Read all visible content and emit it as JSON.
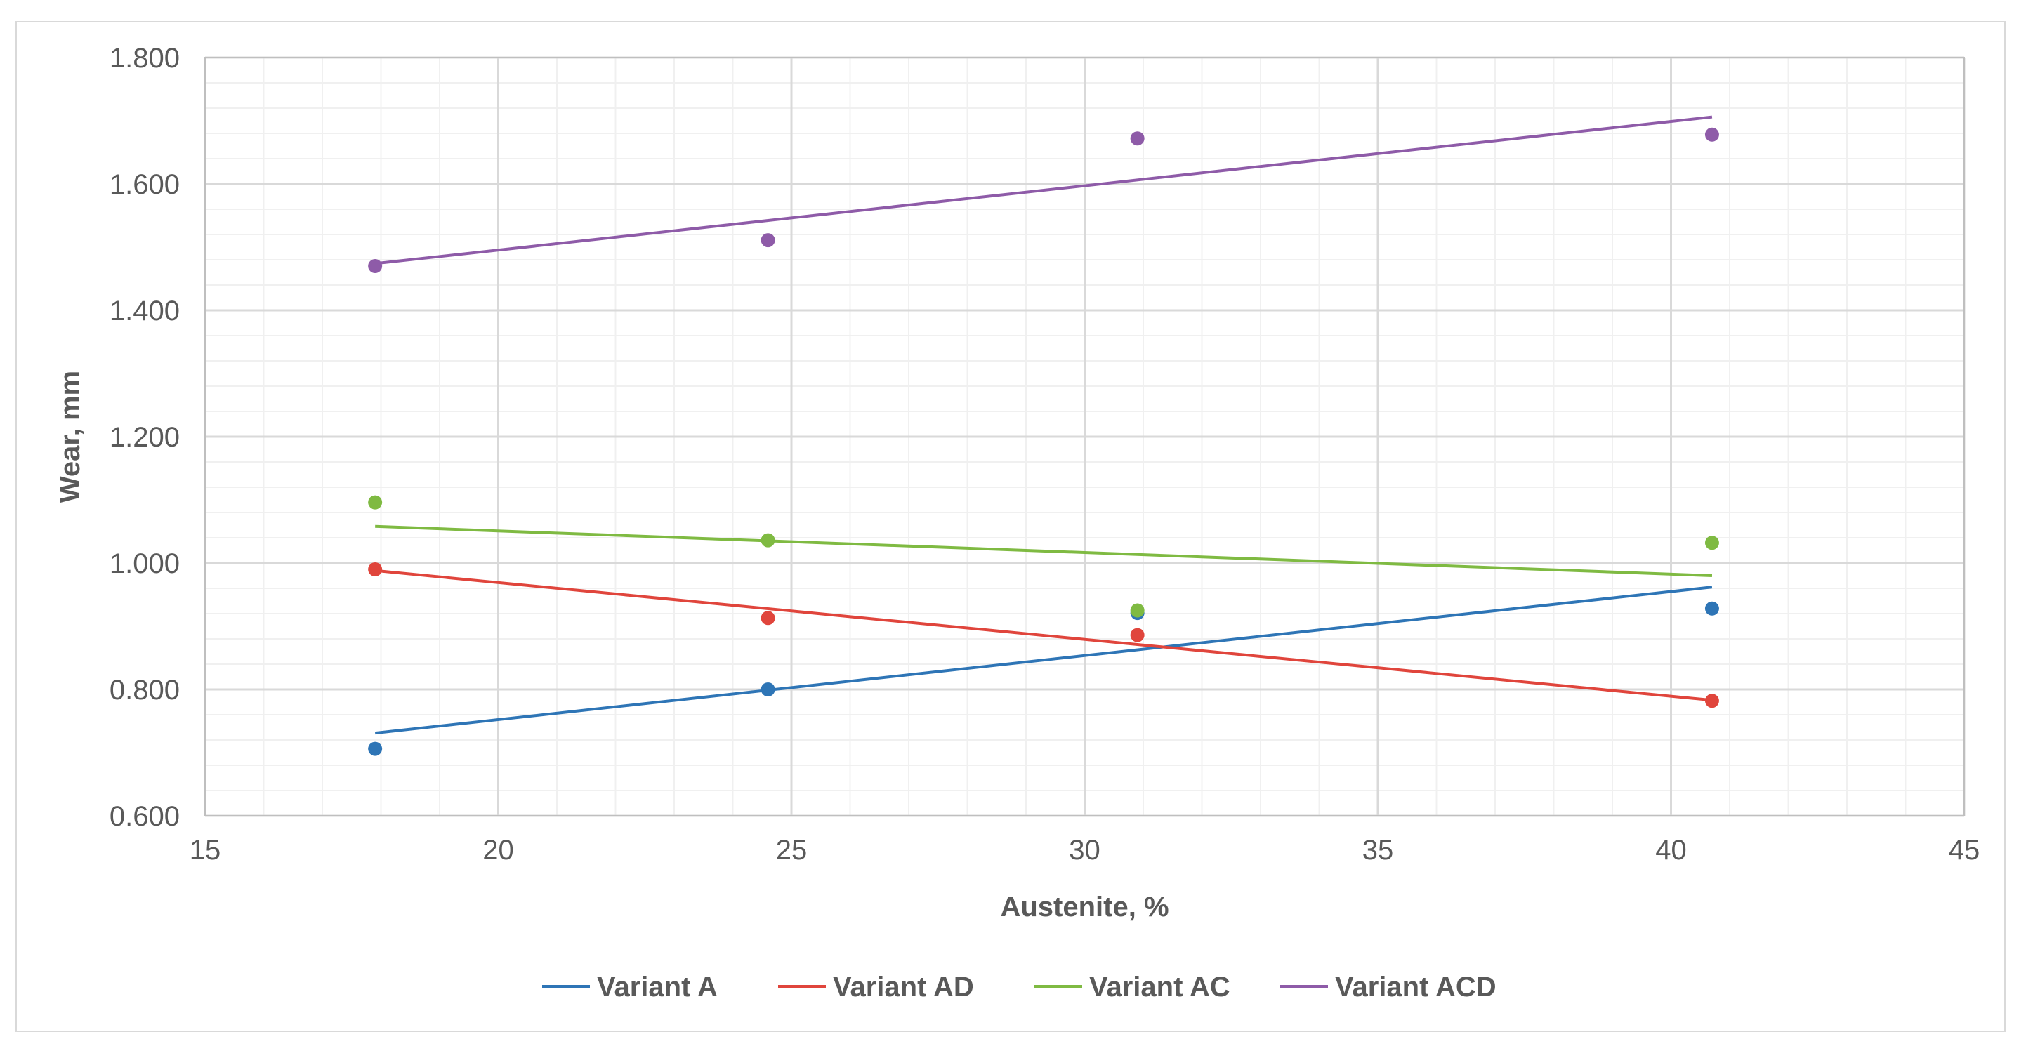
{
  "chart_data": {
    "type": "scatter",
    "title": "",
    "xlabel": "Austenite, %",
    "ylabel": "Wear, mm",
    "xlim": [
      15,
      45
    ],
    "ylim": [
      0.6,
      1.8
    ],
    "x_ticks": [
      "15",
      "20",
      "25",
      "30",
      "35",
      "40",
      "45"
    ],
    "y_ticks": [
      "0.600",
      "0.800",
      "1.000",
      "1.200",
      "1.400",
      "1.600",
      "1.800"
    ],
    "x_tick_values": [
      15,
      20,
      25,
      30,
      35,
      40,
      45
    ],
    "y_tick_values": [
      0.6,
      0.8,
      1.0,
      1.2,
      1.4,
      1.6,
      1.8
    ],
    "grid": true,
    "legend_position": "bottom",
    "series": [
      {
        "name": "Variant A",
        "color": "#2e75b6",
        "x": [
          17.9,
          24.6,
          30.9,
          40.7
        ],
        "y": [
          0.706,
          0.8,
          0.921,
          0.928
        ],
        "trendline": {
          "x": [
            17.9,
            40.7
          ],
          "y": [
            0.731,
            0.962
          ]
        }
      },
      {
        "name": "Variant AD",
        "color": "#e0453c",
        "x": [
          17.9,
          24.6,
          30.9,
          40.7
        ],
        "y": [
          0.99,
          0.913,
          0.886,
          0.782
        ],
        "trendline": {
          "x": [
            17.9,
            40.7
          ],
          "y": [
            0.988,
            0.783
          ]
        }
      },
      {
        "name": "Variant AC",
        "color": "#7fba42",
        "x": [
          17.9,
          24.6,
          30.9,
          40.7
        ],
        "y": [
          1.096,
          1.036,
          0.925,
          1.032
        ],
        "trendline": {
          "x": [
            17.9,
            40.7
          ],
          "y": [
            1.058,
            0.98
          ]
        }
      },
      {
        "name": "Variant ACD",
        "color": "#8e5ba8",
        "x": [
          17.9,
          24.6,
          30.9,
          40.7
        ],
        "y": [
          1.47,
          1.511,
          1.672,
          1.678
        ],
        "trendline": {
          "x": [
            17.9,
            40.7
          ],
          "y": [
            1.474,
            1.706
          ]
        }
      }
    ]
  }
}
